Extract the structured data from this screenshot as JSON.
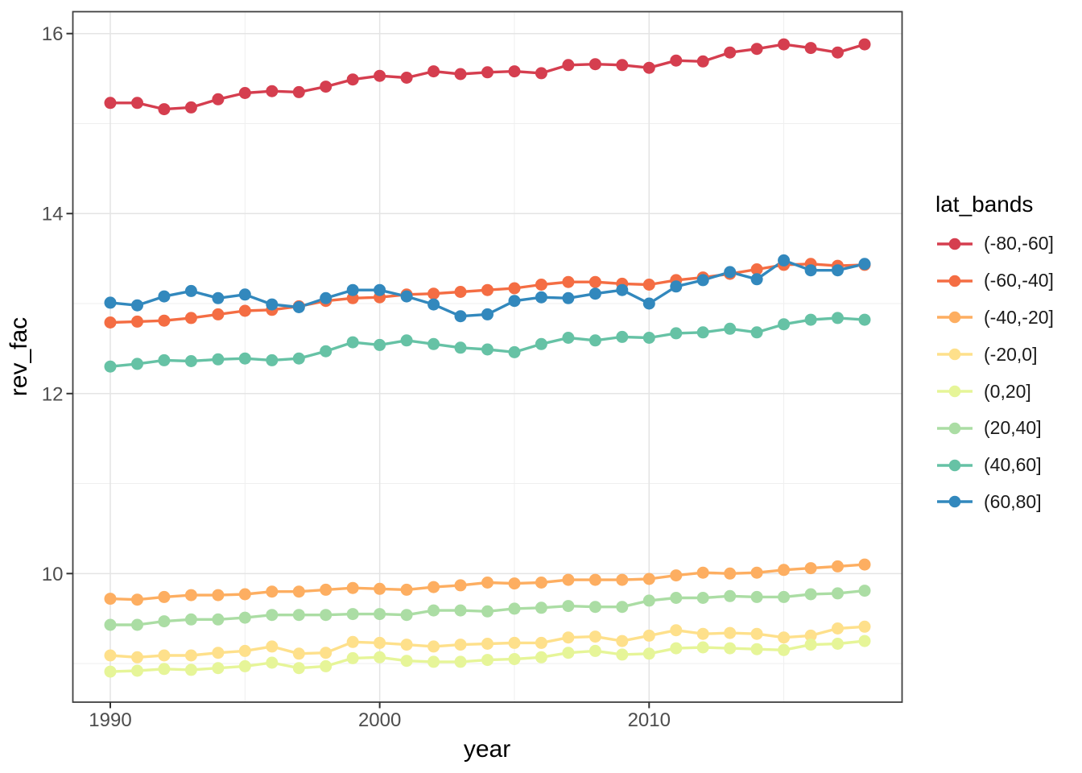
{
  "chart_data": {
    "type": "line",
    "title": "",
    "xlabel": "year",
    "ylabel": "rev_fac",
    "legend_title": "lat_bands",
    "legend_position": "right",
    "grid": true,
    "x": [
      1990,
      1991,
      1992,
      1993,
      1994,
      1995,
      1996,
      1997,
      1998,
      1999,
      2000,
      2001,
      2002,
      2003,
      2004,
      2005,
      2006,
      2007,
      2008,
      2009,
      2010,
      2011,
      2012,
      2013,
      2014,
      2015,
      2016,
      2017,
      2018
    ],
    "x_range": [
      1990,
      2018
    ],
    "ylim": [
      8.57,
      16.25
    ],
    "x_ticks_major": [
      1990,
      2000,
      2010
    ],
    "x_ticks_minor": [
      1995,
      2005,
      2015
    ],
    "y_ticks_major": [
      10,
      12,
      14,
      16
    ],
    "y_ticks_minor": [
      9,
      11,
      13,
      15
    ],
    "marker": "circle",
    "series": [
      {
        "name": "(-80,-60]",
        "color": "#d53e4f",
        "values": [
          15.23,
          15.23,
          15.16,
          15.18,
          15.27,
          15.34,
          15.36,
          15.35,
          15.41,
          15.49,
          15.53,
          15.51,
          15.58,
          15.55,
          15.57,
          15.58,
          15.56,
          15.65,
          15.66,
          15.65,
          15.62,
          15.7,
          15.69,
          15.79,
          15.83,
          15.88,
          15.84,
          15.79,
          15.88
        ]
      },
      {
        "name": "(-60,-40]",
        "color": "#f46d43",
        "values": [
          12.79,
          12.8,
          12.81,
          12.84,
          12.88,
          12.92,
          12.93,
          12.97,
          13.03,
          13.06,
          13.07,
          13.1,
          13.11,
          13.13,
          13.15,
          13.17,
          13.21,
          13.24,
          13.24,
          13.22,
          13.21,
          13.26,
          13.29,
          13.33,
          13.38,
          13.43,
          13.44,
          13.42,
          13.43
        ]
      },
      {
        "name": "(-40,-20]",
        "color": "#fdae61",
        "values": [
          9.72,
          9.71,
          9.74,
          9.76,
          9.76,
          9.77,
          9.8,
          9.8,
          9.82,
          9.84,
          9.83,
          9.82,
          9.85,
          9.87,
          9.9,
          9.89,
          9.9,
          9.93,
          9.93,
          9.93,
          9.94,
          9.98,
          10.01,
          10.0,
          10.01,
          10.04,
          10.06,
          10.08,
          10.1
        ]
      },
      {
        "name": "(-20,0]",
        "color": "#fee08b",
        "values": [
          9.09,
          9.07,
          9.09,
          9.09,
          9.12,
          9.14,
          9.19,
          9.11,
          9.12,
          9.24,
          9.23,
          9.21,
          9.19,
          9.21,
          9.22,
          9.23,
          9.23,
          9.29,
          9.3,
          9.25,
          9.31,
          9.37,
          9.33,
          9.34,
          9.33,
          9.29,
          9.31,
          9.39,
          9.41
        ]
      },
      {
        "name": "(0,20]",
        "color": "#e6f598",
        "values": [
          8.91,
          8.92,
          8.94,
          8.93,
          8.95,
          8.97,
          9.01,
          8.95,
          8.97,
          9.06,
          9.07,
          9.03,
          9.02,
          9.02,
          9.04,
          9.05,
          9.07,
          9.12,
          9.14,
          9.1,
          9.11,
          9.17,
          9.18,
          9.17,
          9.16,
          9.15,
          9.21,
          9.22,
          9.25
        ]
      },
      {
        "name": "(20,40]",
        "color": "#abdda4",
        "values": [
          9.43,
          9.43,
          9.47,
          9.49,
          9.49,
          9.51,
          9.54,
          9.54,
          9.54,
          9.55,
          9.55,
          9.54,
          9.59,
          9.59,
          9.58,
          9.61,
          9.62,
          9.64,
          9.63,
          9.63,
          9.7,
          9.73,
          9.73,
          9.75,
          9.74,
          9.74,
          9.77,
          9.78,
          9.81
        ]
      },
      {
        "name": "(40,60]",
        "color": "#66c2a5",
        "values": [
          12.3,
          12.33,
          12.37,
          12.36,
          12.38,
          12.39,
          12.37,
          12.39,
          12.47,
          12.57,
          12.54,
          12.59,
          12.55,
          12.51,
          12.49,
          12.46,
          12.55,
          12.62,
          12.59,
          12.63,
          12.62,
          12.67,
          12.68,
          12.72,
          12.68,
          12.77,
          12.82,
          12.84,
          12.82
        ]
      },
      {
        "name": "(60,80]",
        "color": "#3288bd",
        "values": [
          13.01,
          12.98,
          13.08,
          13.14,
          13.06,
          13.1,
          12.99,
          12.96,
          13.06,
          13.15,
          13.15,
          13.08,
          12.99,
          12.86,
          12.88,
          13.03,
          13.07,
          13.06,
          13.11,
          13.15,
          13.0,
          13.19,
          13.26,
          13.35,
          13.27,
          13.48,
          13.37,
          13.37,
          13.44
        ]
      }
    ],
    "style": {
      "panel_border_color": "#404040",
      "grid_major_color": "#e4e4e4",
      "grid_minor_color": "#efefef",
      "tick_color": "#333333",
      "tick_label_color": "#4d4d4d",
      "point_radius": 7.5,
      "line_width": 3.4
    }
  }
}
